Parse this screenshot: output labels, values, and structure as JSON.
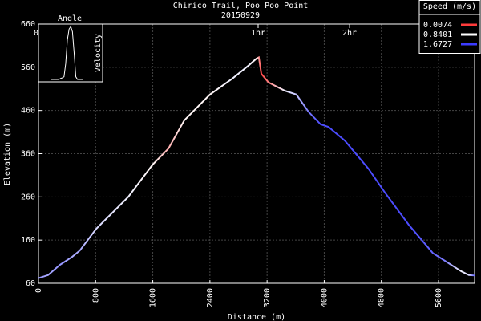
{
  "chart_data": {
    "type": "line",
    "title": "Chirico Trail, Poo Poo Point",
    "subtitle": "20150929",
    "xlabel": "Distance (m)",
    "ylabel": "Elevation (m)",
    "x": [
      0,
      135,
      303,
      470,
      580,
      808,
      1257,
      1600,
      1820,
      2040,
      2400,
      2716,
      2940,
      3050,
      3085,
      3120,
      3220,
      3445,
      3610,
      3780,
      3950,
      4060,
      4290,
      4620,
      4850,
      5185,
      5520,
      5690,
      5915,
      6025,
      6105
    ],
    "values": [
      72,
      79,
      103,
      121,
      136,
      186,
      260,
      335,
      372,
      437,
      497,
      534,
      564,
      580,
      583,
      545,
      525,
      506,
      497,
      457,
      428,
      422,
      390,
      325,
      270,
      195,
      130,
      112,
      88,
      79,
      78
    ],
    "speeds": [
      1.3,
      1.2,
      1.3,
      1.2,
      1.2,
      1.0,
      0.9,
      0.8,
      0.5,
      0.8,
      0.8,
      0.9,
      0.9,
      0.8,
      0.4,
      0.05,
      0.3,
      0.9,
      1.1,
      1.4,
      1.6,
      1.6,
      1.6,
      1.6,
      1.6,
      1.6,
      1.5,
      1.4,
      0.9,
      1.0,
      1.5
    ],
    "xlim": [
      0,
      6105
    ],
    "ylim": [
      60,
      660
    ],
    "xticks": [
      0,
      800,
      1600,
      2400,
      3200,
      4000,
      4800,
      5600
    ],
    "yticks": [
      60,
      160,
      260,
      360,
      460,
      560,
      660
    ],
    "x2ticks": [
      {
        "value": 0,
        "label": "0h"
      },
      {
        "value": 3075,
        "label": "1hr"
      },
      {
        "value": 4355,
        "label": "2hr"
      }
    ],
    "grid": true,
    "color_scale": {
      "title": "Speed (m/s)",
      "values": [
        0.0074,
        0.8401,
        1.6727
      ],
      "colors": [
        "#ff3b3b",
        "#ffffff",
        "#3b3bff"
      ]
    },
    "inset": {
      "title": "Angle",
      "ylabel": "Velocity",
      "values": [
        0,
        0,
        0,
        0,
        0,
        0,
        0.02,
        0.03,
        0.05,
        0.3,
        0.75,
        0.95,
        1,
        0.9,
        0.5,
        0.05,
        0,
        0,
        0,
        0
      ]
    }
  }
}
